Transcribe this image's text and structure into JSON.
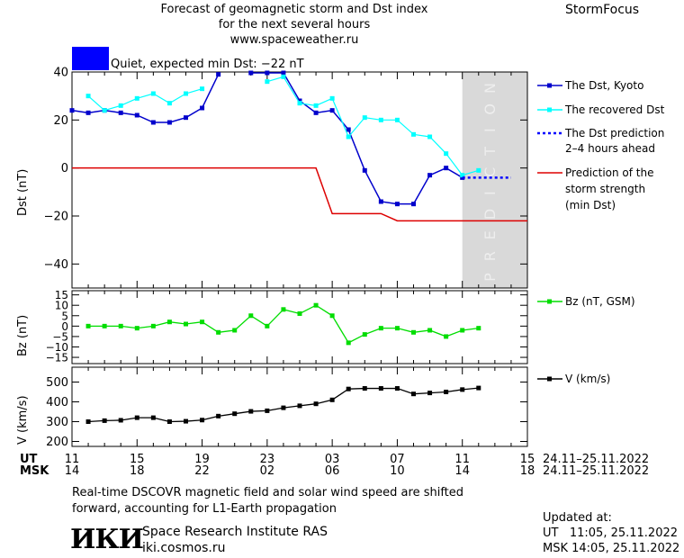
{
  "header": {
    "title_line1": "Forecast of geomagnetic storm and Dst index",
    "title_line2": "for the next several hours",
    "title_line3": "www.spaceweather.ru",
    "brand": "StormFocus"
  },
  "status": {
    "text": "Quiet, expected min Dst: −22 nT",
    "color": "#0000ff"
  },
  "colors": {
    "dst_kyoto": "#0000cc",
    "dst_recovered": "#00ffff",
    "dst_prediction": "#0000ff",
    "storm_strength": "#dd0000",
    "bz": "#00dd00",
    "speed": "#000000",
    "prediction_zone": "#d9d9d9"
  },
  "legend": {
    "dst_kyoto": "The Dst, Kyoto",
    "dst_recovered": "The recovered Dst",
    "dst_prediction_1": "The Dst prediction",
    "dst_prediction_2": "2–4 hours ahead",
    "storm_1": "Prediction of the",
    "storm_2": "storm strength",
    "storm_3": "(min Dst)",
    "bz": "Bz (nT, GSM)",
    "speed": "V (km/s)"
  },
  "prediction_label": "PREDICTION",
  "axes": {
    "dst_ylabel": "Dst (nT)",
    "bz_ylabel": "Bz (nT)",
    "v_ylabel": "V (km/s)",
    "ut_label": "UT",
    "msk_label": "MSK",
    "ut_ticks": [
      "11",
      "15",
      "19",
      "23",
      "03",
      "07",
      "11",
      "15"
    ],
    "msk_ticks": [
      "14",
      "18",
      "22",
      "02",
      "06",
      "10",
      "14",
      "18"
    ],
    "ut_date": "24.11–25.11.2022",
    "msk_date": "24.11–25.11.2022"
  },
  "chart_data": [
    {
      "type": "line",
      "ylabel": "Dst (nT)",
      "xlim": [
        0,
        28
      ],
      "ylim": [
        -50,
        40
      ],
      "yticks": [
        "40",
        "20",
        "0",
        "−20",
        "−40"
      ],
      "ytick_values": [
        40,
        20,
        0,
        -20,
        -40
      ],
      "prediction_zone_x": [
        24,
        28
      ],
      "series": [
        {
          "name": "The Dst, Kyoto",
          "x": [
            0,
            1,
            2,
            3,
            4,
            5,
            6,
            7,
            8,
            9,
            10,
            11,
            12,
            13,
            14,
            15,
            16,
            17,
            18,
            19,
            20,
            21,
            22,
            23,
            24
          ],
          "y": [
            24,
            23,
            24,
            23,
            22,
            19,
            19,
            21,
            25,
            39,
            null,
            41,
            40,
            40,
            28,
            23,
            24,
            16,
            -1,
            -14,
            -15,
            -15,
            -3,
            0,
            -4
          ]
        },
        {
          "name": "The recovered Dst",
          "x": [
            1,
            2,
            3,
            4,
            5,
            6,
            7,
            8,
            9,
            10,
            11,
            12,
            13,
            14,
            15,
            16,
            17,
            18,
            19,
            20,
            21,
            22,
            23,
            24,
            25
          ],
          "y": [
            30,
            24,
            26,
            29,
            31,
            27,
            31,
            33,
            null,
            null,
            null,
            36,
            38,
            27,
            26,
            29,
            13,
            21,
            20,
            20,
            14,
            13,
            6,
            -3,
            -1
          ]
        },
        {
          "name": "The Dst prediction 2–4 hours ahead",
          "x": [
            24,
            27
          ],
          "y": [
            -4,
            -4
          ]
        },
        {
          "name": "Prediction of the storm strength (min Dst)",
          "x": [
            0,
            15,
            16,
            19,
            20,
            28
          ],
          "y": [
            0,
            0,
            -19,
            -19,
            -22,
            -22
          ]
        }
      ]
    },
    {
      "type": "line",
      "ylabel": "Bz (nT)",
      "xlim": [
        0,
        28
      ],
      "ylim": [
        -18,
        17
      ],
      "yticks": [
        "15",
        "10",
        "5",
        "0",
        "−5",
        "−10",
        "−15"
      ],
      "ytick_values": [
        15,
        10,
        5,
        0,
        -5,
        -10,
        -15
      ],
      "series": [
        {
          "name": "Bz (nT, GSM)",
          "x": [
            1,
            2,
            3,
            4,
            5,
            6,
            7,
            8,
            9,
            10,
            11,
            12,
            13,
            14,
            15,
            16,
            17,
            18,
            19,
            20,
            21,
            22,
            23,
            24,
            25
          ],
          "y": [
            0,
            0,
            0,
            -1,
            0,
            2,
            1,
            2,
            -3,
            -2,
            5,
            0,
            8,
            6,
            10,
            5,
            -8,
            -4,
            -1,
            -1,
            -3,
            -2,
            -5,
            -2,
            -1
          ]
        }
      ]
    },
    {
      "type": "line",
      "ylabel": "V (km/s)",
      "xlim": [
        0,
        28
      ],
      "ylim": [
        175,
        575
      ],
      "yticks": [
        "500",
        "400",
        "300",
        "200"
      ],
      "ytick_values": [
        500,
        400,
        300,
        200
      ],
      "series": [
        {
          "name": "V (km/s)",
          "x": [
            1,
            2,
            3,
            4,
            5,
            6,
            7,
            8,
            9,
            10,
            11,
            12,
            13,
            14,
            15,
            16,
            17,
            18,
            19,
            20,
            21,
            22,
            23,
            24,
            25
          ],
          "y": [
            300,
            305,
            307,
            320,
            320,
            300,
            302,
            308,
            328,
            340,
            352,
            355,
            370,
            380,
            390,
            410,
            465,
            468,
            468,
            468,
            440,
            445,
            450,
            462,
            470
          ]
        }
      ]
    }
  ],
  "footer": {
    "note_1": "Real-time DSCOVR magnetic field and solar wind speed are shifted",
    "note_2": "forward, accounting for L1-Earth propagation",
    "logo_text": "ИКИ",
    "institute": "Space Research Institute RAS",
    "site": "iki.cosmos.ru",
    "updated_label": "Updated at:",
    "updated_ut": "UT   11:05, 25.11.2022",
    "updated_msk": "MSK 14:05, 25.11.2022"
  }
}
